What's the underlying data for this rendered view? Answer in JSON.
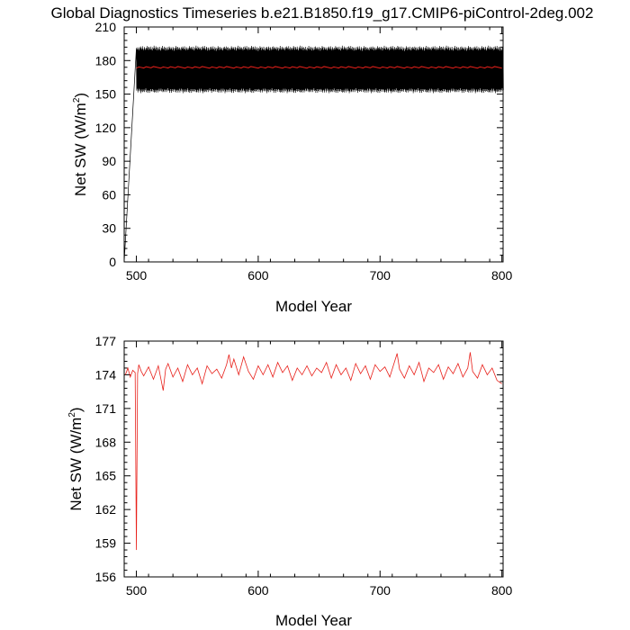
{
  "title": "Global Diagnostics Timeseries b.e21.B1850.f19_g17.CMIP6-piControl-2deg.002",
  "chart_data": [
    {
      "type": "line",
      "xlabel": "Model Year",
      "ylabel_main": "Net SW (W/m",
      "ylabel_sup": "2",
      "ylabel_close": ")",
      "xlim": [
        490,
        801
      ],
      "ylim": [
        0,
        210
      ],
      "xticks": [
        500,
        600,
        700,
        800
      ],
      "yticks": [
        0,
        30,
        60,
        90,
        120,
        150,
        180,
        210
      ],
      "monthly_cycle": {
        "start_year": 490,
        "start_value": 0,
        "spinup_end_year": 500,
        "mean": 172,
        "amplitude": 19
      },
      "annual_mean": {
        "start_year": 500,
        "end_year": 801,
        "value": 174
      },
      "colors": {
        "monthly": "#000000",
        "annual": "#e8201a"
      }
    },
    {
      "type": "line",
      "xlabel": "Model Year",
      "ylabel_main": "Net SW (W/m",
      "ylabel_sup": "2",
      "ylabel_close": ")",
      "xlim": [
        490,
        801
      ],
      "ylim": [
        156,
        177
      ],
      "xticks": [
        500,
        600,
        700,
        800
      ],
      "yticks": [
        156,
        159,
        162,
        165,
        168,
        171,
        174,
        177
      ],
      "series": [
        {
          "color": "#e8201a",
          "x": [
            491,
            493,
            495,
            497,
            499,
            500,
            501,
            502,
            504,
            506,
            510,
            514,
            518,
            522,
            524,
            526,
            530,
            534,
            538,
            542,
            546,
            550,
            554,
            558,
            562,
            566,
            570,
            574,
            576,
            578,
            580,
            584,
            588,
            592,
            596,
            600,
            604,
            608,
            612,
            616,
            620,
            624,
            628,
            632,
            636,
            640,
            644,
            648,
            652,
            656,
            660,
            664,
            668,
            672,
            676,
            680,
            684,
            688,
            692,
            696,
            700,
            704,
            708,
            712,
            714,
            716,
            720,
            724,
            728,
            732,
            736,
            740,
            744,
            748,
            752,
            756,
            760,
            764,
            768,
            772,
            774,
            776,
            780,
            784,
            788,
            792,
            796,
            800
          ],
          "y": [
            174.0,
            174.6,
            173.8,
            174.4,
            174.2,
            158.4,
            174.1,
            174.9,
            174.3,
            173.9,
            174.7,
            173.6,
            174.8,
            172.6,
            174.5,
            175.0,
            173.8,
            174.6,
            173.4,
            174.9,
            174.0,
            174.6,
            173.2,
            174.8,
            174.1,
            174.5,
            173.7,
            174.9,
            175.8,
            174.6,
            175.4,
            174.0,
            175.6,
            174.3,
            173.6,
            174.8,
            174.0,
            174.9,
            173.8,
            175.1,
            174.2,
            174.8,
            173.5,
            174.6,
            174.0,
            174.8,
            173.9,
            174.6,
            174.2,
            175.1,
            173.7,
            174.9,
            174.0,
            174.6,
            173.5,
            175.0,
            174.1,
            174.8,
            173.6,
            174.9,
            174.3,
            174.7,
            173.8,
            175.2,
            175.9,
            174.5,
            173.7,
            174.8,
            174.0,
            175.1,
            173.4,
            174.6,
            174.2,
            174.9,
            173.6,
            174.7,
            174.1,
            175.0,
            173.8,
            174.6,
            176.0,
            174.3,
            173.7,
            174.9,
            174.0,
            174.6,
            173.5,
            173.2
          ]
        }
      ]
    }
  ]
}
